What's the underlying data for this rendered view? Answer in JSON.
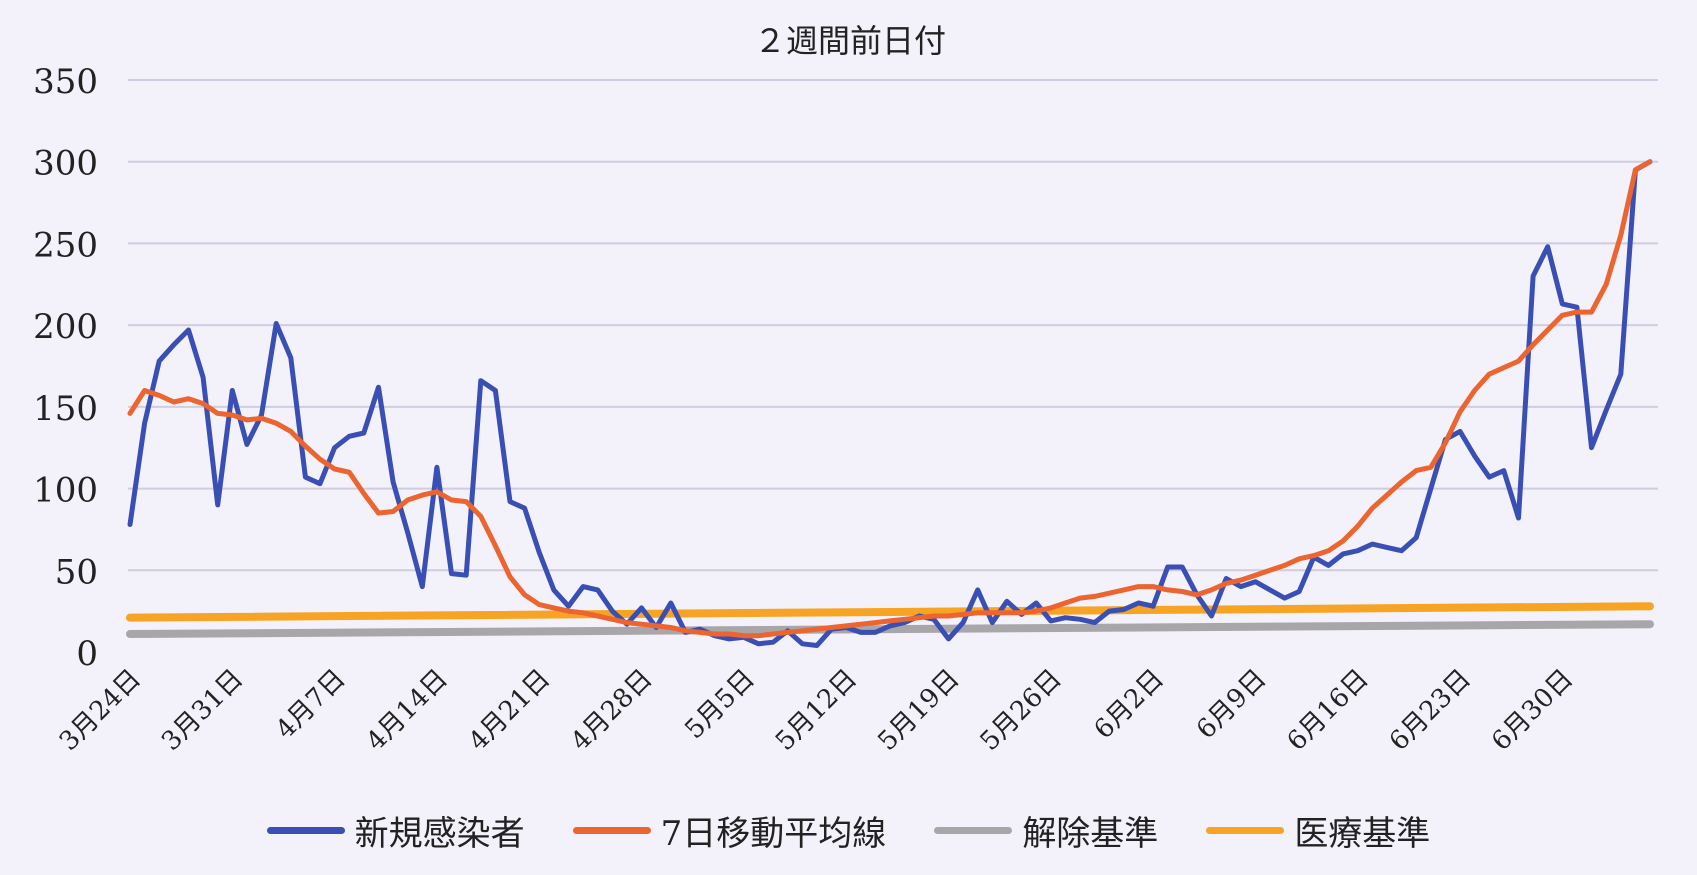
{
  "chart_data": {
    "type": "line",
    "title": "２週間前日付",
    "xlabel": "",
    "ylabel": "",
    "ylim": [
      0,
      350
    ],
    "yticks": [
      "0",
      "50",
      "100",
      "150",
      "200",
      "250",
      "300",
      "350"
    ],
    "xtick_labels": [
      "3月24日",
      "3月31日",
      "4月7日",
      "4月14日",
      "4月21日",
      "4月28日",
      "5月5日",
      "5月12日",
      "5月19日",
      "5月26日",
      "6月2日",
      "6月9日",
      "6月16日",
      "6月23日",
      "6月30日"
    ],
    "grid": true,
    "legend_position": "bottom",
    "series": [
      {
        "name": "新規感染者",
        "color": "#3a4fb4",
        "values": [
          78,
          140,
          178,
          188,
          197,
          168,
          90,
          160,
          127,
          145,
          201,
          180,
          107,
          103,
          125,
          132,
          134,
          162,
          104,
          73,
          40,
          113,
          48,
          47,
          166,
          160,
          92,
          88,
          61,
          38,
          28,
          40,
          38,
          25,
          17,
          27,
          15,
          30,
          12,
          14,
          10,
          8,
          9,
          5,
          6,
          13,
          5,
          4,
          14,
          15,
          12,
          12,
          16,
          18,
          22,
          20,
          8,
          18,
          38,
          18,
          31,
          23,
          30,
          19,
          21,
          20,
          18,
          25,
          26,
          30,
          28,
          52,
          52,
          35,
          22,
          45,
          40,
          43,
          38,
          33,
          37,
          58,
          53,
          60,
          62,
          66,
          64,
          62,
          70,
          100,
          130,
          135,
          120,
          107,
          111,
          82,
          230,
          248,
          213,
          211,
          125,
          148,
          170,
          295,
          300
        ]
      },
      {
        "name": "7日移動平均線",
        "color": "#ec6430",
        "values": [
          146,
          160,
          157,
          153,
          155,
          152,
          146,
          145,
          142,
          143,
          140,
          135,
          126,
          118,
          112,
          110,
          97,
          85,
          86,
          93,
          96,
          98,
          93,
          92,
          83,
          65,
          46,
          35,
          29,
          27,
          25,
          24,
          22,
          20,
          18,
          17,
          16,
          15,
          13,
          12,
          11,
          11,
          10,
          10,
          11,
          12,
          13,
          14,
          15,
          16,
          17,
          18,
          19,
          20,
          21,
          22,
          22,
          23,
          24,
          24,
          24,
          24,
          25,
          27,
          30,
          33,
          34,
          36,
          38,
          40,
          40,
          38,
          37,
          35,
          38,
          42,
          44,
          47,
          50,
          53,
          57,
          59,
          62,
          68,
          77,
          88,
          96,
          104,
          111,
          113,
          128,
          147,
          160,
          170,
          174,
          178,
          188,
          197,
          206,
          208,
          208,
          225,
          255,
          295,
          300
        ]
      },
      {
        "name": "解除基準",
        "color": "#a8a6a9",
        "values": [
          11,
          17
        ]
      },
      {
        "name": "医療基準",
        "color": "#f7a323",
        "values": [
          21,
          28
        ]
      }
    ]
  }
}
